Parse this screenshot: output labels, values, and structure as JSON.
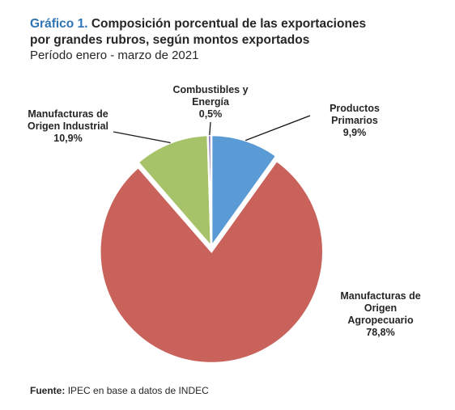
{
  "title_prefix": "Gráfico 1.",
  "title_line1": "Composición porcentual de las exportaciones",
  "title_line2": "por grandes rubros, según montos exportados",
  "subtitle": "Período enero - marzo de 2021",
  "chart_data": {
    "type": "pie",
    "title": "Composición porcentual de las exportaciones por grandes rubros, según montos exportados",
    "slices": [
      {
        "name_lines": [
          "Productos",
          "Primarios"
        ],
        "name": "Productos Primarios",
        "value": 9.9,
        "label": "9,9%",
        "color": "#5b9bd5"
      },
      {
        "name_lines": [
          "Manufacturas de",
          "Origen",
          "Agropecuario"
        ],
        "name": "Manufacturas de Origen Agropecuario",
        "value": 78.8,
        "label": "78,8%",
        "color": "#c9625b"
      },
      {
        "name_lines": [
          "Manufacturas de",
          "Origen Industrial"
        ],
        "name": "Manufacturas de Origen Industrial",
        "value": 10.9,
        "label": "10,9%",
        "color": "#a6c36a"
      },
      {
        "name_lines": [
          "Combustibles y",
          "Energía"
        ],
        "name": "Combustibles y Energía",
        "value": 0.5,
        "label": "0,5%",
        "color": "#8e74b8"
      }
    ],
    "exploded": "Manufacturas de Origen Agropecuario"
  },
  "source_label": "Fuente:",
  "source_text": "IPEC en base a datos de INDEC"
}
